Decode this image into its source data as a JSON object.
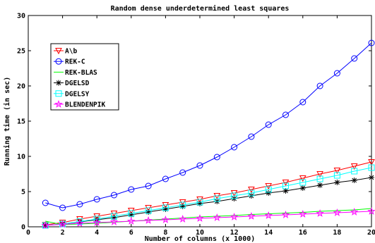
{
  "chart_data": {
    "type": "line",
    "title": "Random dense underdetermined least squares",
    "xlabel": "Number of columns (x 1000)",
    "ylabel": "Running time (in sec)",
    "xlim": [
      0,
      20
    ],
    "ylim": [
      0,
      30
    ],
    "xticks": [
      0,
      2,
      4,
      6,
      8,
      10,
      12,
      14,
      16,
      18,
      20
    ],
    "yticks": [
      0,
      5,
      10,
      15,
      20,
      25,
      30
    ],
    "grid": false,
    "legend_position": "upper-left",
    "x": [
      1,
      2,
      3,
      4,
      5,
      6,
      7,
      8,
      9,
      10,
      11,
      12,
      13,
      14,
      15,
      16,
      17,
      18,
      19,
      20
    ],
    "series": [
      {
        "name": "A\\b",
        "color": "#ff0000",
        "marker": "triangle-down",
        "values": [
          0.3,
          0.6,
          1.1,
          1.5,
          1.9,
          2.3,
          2.7,
          3.1,
          3.5,
          3.9,
          4.4,
          4.8,
          5.3,
          5.8,
          6.3,
          6.9,
          7.5,
          8.0,
          8.6,
          9.2
        ]
      },
      {
        "name": "REK-C",
        "color": "#0000ff",
        "marker": "circle",
        "values": [
          3.4,
          2.7,
          3.2,
          3.9,
          4.5,
          5.3,
          5.8,
          6.8,
          7.7,
          8.7,
          9.9,
          11.3,
          12.8,
          14.5,
          15.9,
          17.7,
          20.0,
          21.8,
          23.9,
          26.1
        ]
      },
      {
        "name": "REK-BLAS",
        "color": "#00ff00",
        "marker": "none",
        "values": [
          0.8,
          0.3,
          0.4,
          0.5,
          0.65,
          0.8,
          0.95,
          1.1,
          1.25,
          1.4,
          1.5,
          1.6,
          1.75,
          1.85,
          1.95,
          2.05,
          2.2,
          2.3,
          2.4,
          2.6
        ]
      },
      {
        "name": "DGELSD",
        "color": "#000000",
        "marker": "asterisk",
        "values": [
          0.2,
          0.4,
          0.7,
          1.0,
          1.3,
          1.7,
          2.1,
          2.5,
          2.9,
          3.3,
          3.6,
          4.0,
          4.4,
          4.8,
          5.1,
          5.5,
          5.9,
          6.3,
          6.6,
          7.0
        ]
      },
      {
        "name": "DGELSY",
        "color": "#00ffff",
        "marker": "square",
        "values": [
          0.2,
          0.4,
          0.75,
          1.1,
          1.5,
          1.9,
          2.3,
          2.7,
          3.1,
          3.5,
          4.0,
          4.4,
          4.8,
          5.3,
          5.8,
          6.3,
          6.8,
          7.3,
          7.9,
          8.4
        ]
      },
      {
        "name": "BLENDENPIK",
        "color": "#ff00ff",
        "marker": "star",
        "values": [
          0.2,
          0.35,
          0.5,
          0.6,
          0.7,
          0.8,
          0.9,
          1.0,
          1.1,
          1.2,
          1.3,
          1.4,
          1.5,
          1.6,
          1.7,
          1.8,
          1.9,
          2.0,
          2.1,
          2.2
        ]
      }
    ]
  }
}
